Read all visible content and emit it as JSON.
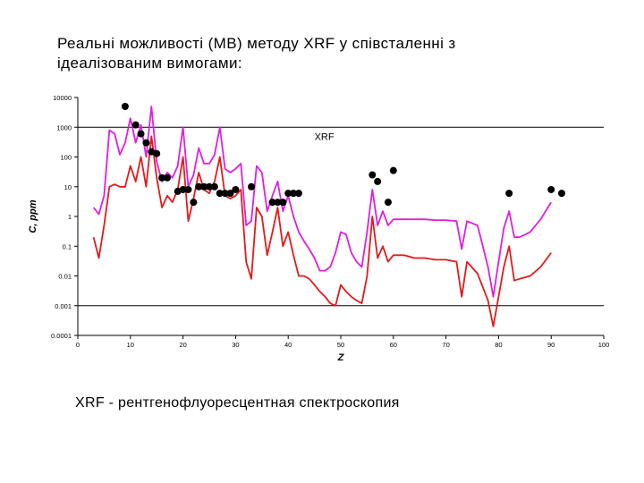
{
  "title_lines": [
    "Реальні можливості (МВ) методу XRF у співсталенні з",
    "ідеалізованим вимогами:"
  ],
  "footnote": "XRF - рентгенофлуоресцентная спектроскопия",
  "colors": {
    "magenta": "#e01ee0",
    "red": "#e31a1a",
    "markers": "#000000",
    "refLines": "#000000"
  },
  "chart_data": {
    "type": "line",
    "title": "",
    "xlabel": "Z",
    "ylabel": "C, ppm",
    "xlim": [
      0,
      100
    ],
    "ylim": [
      0.0001,
      10000
    ],
    "yscale": "log",
    "x_ticks": [
      0,
      10,
      20,
      30,
      40,
      50,
      60,
      70,
      80,
      90,
      100
    ],
    "x_tick_labels": [
      "0",
      "10",
      "20",
      "30",
      "40",
      "50",
      "60",
      "70",
      "80",
      "90",
      "100"
    ],
    "y_ticks": [
      0.0001,
      0.001,
      0.01,
      0.1,
      1,
      10,
      100,
      1000,
      10000
    ],
    "y_tick_labels": [
      "0.0001",
      "0.001",
      "0.01",
      "0.1",
      "1",
      "10",
      "100",
      "1000",
      "10000"
    ],
    "reference_lines": [
      1000,
      0.001
    ],
    "annotations": [
      {
        "text": "XRF",
        "x": 45,
        "y": 500
      }
    ],
    "series": [
      {
        "color": "#e01ee0",
        "x": [
          3,
          4,
          5,
          6,
          7,
          8,
          9,
          10,
          11,
          12,
          13,
          14,
          15,
          16,
          17,
          18,
          19,
          20,
          21,
          22,
          23,
          24,
          25,
          26,
          27,
          28,
          29,
          30,
          31,
          32,
          33,
          34,
          35,
          36,
          37,
          38,
          39,
          40,
          41,
          42,
          43,
          44,
          45,
          46,
          47,
          48,
          49,
          50,
          51,
          52,
          53,
          54,
          55,
          56,
          57,
          58,
          59,
          60,
          62,
          64,
          66,
          68,
          70,
          72,
          73,
          74,
          76,
          78,
          79,
          80,
          81,
          82,
          83,
          84,
          86,
          88,
          90
        ],
        "y": [
          2,
          1.2,
          5,
          800,
          600,
          120,
          300,
          2000,
          300,
          1200,
          100,
          5000,
          70,
          15,
          30,
          20,
          50,
          1000,
          10,
          25,
          200,
          60,
          60,
          120,
          1000,
          40,
          30,
          40,
          60,
          0.5,
          0.7,
          50,
          30,
          1.5,
          5,
          15,
          1.5,
          5,
          1,
          0.3,
          0.15,
          0.08,
          0.04,
          0.015,
          0.015,
          0.02,
          0.06,
          0.3,
          0.25,
          0.06,
          0.03,
          0.02,
          0.3,
          8,
          0.5,
          1.5,
          0.5,
          0.8,
          0.8,
          0.8,
          0.8,
          0.75,
          0.75,
          0.7,
          0.08,
          0.7,
          0.5,
          0.02,
          0.002,
          0.03,
          0.4,
          1.5,
          0.2,
          0.2,
          0.3,
          0.8,
          3
        ]
      },
      {
        "color": "#e31a1a",
        "x": [
          3,
          4,
          5,
          6,
          7,
          8,
          9,
          10,
          11,
          12,
          13,
          14,
          15,
          16,
          17,
          18,
          19,
          20,
          21,
          22,
          23,
          24,
          25,
          26,
          27,
          28,
          29,
          30,
          31,
          32,
          33,
          34,
          35,
          36,
          37,
          38,
          39,
          40,
          41,
          42,
          43,
          44,
          45,
          46,
          47,
          48,
          49,
          50,
          51,
          52,
          53,
          54,
          55,
          56,
          57,
          58,
          59,
          60,
          62,
          64,
          66,
          68,
          70,
          72,
          73,
          74,
          76,
          78,
          79,
          80,
          81,
          82,
          83,
          84,
          86,
          88,
          90
        ],
        "y": [
          0.2,
          0.04,
          0.5,
          10,
          12,
          10,
          10,
          50,
          15,
          100,
          10,
          500,
          20,
          2,
          5,
          3,
          8,
          100,
          0.7,
          4,
          30,
          8,
          6,
          15,
          100,
          5,
          4,
          5,
          8,
          0.03,
          0.008,
          2,
          1,
          0.05,
          0.3,
          2,
          0.1,
          0.3,
          0.05,
          0.01,
          0.01,
          0.008,
          0.005,
          0.003,
          0.002,
          0.0012,
          0.001,
          0.005,
          0.003,
          0.002,
          0.0015,
          0.0012,
          0.01,
          1,
          0.04,
          0.1,
          0.03,
          0.05,
          0.05,
          0.04,
          0.04,
          0.035,
          0.035,
          0.03,
          0.002,
          0.03,
          0.012,
          0.0015,
          0.0002,
          0.002,
          0.02,
          0.1,
          0.007,
          0.008,
          0.01,
          0.02,
          0.06
        ]
      },
      {
        "color": "#000000",
        "marker": "circle",
        "x": [
          9,
          11,
          12,
          13,
          14,
          15,
          16,
          17,
          19,
          20,
          21,
          22,
          23,
          24,
          25,
          26,
          27,
          28,
          29,
          30,
          33,
          37,
          38,
          39,
          40,
          41,
          42,
          56,
          57,
          59,
          60,
          82,
          90,
          92
        ],
        "y": [
          5000,
          1200,
          600,
          300,
          150,
          130,
          20,
          20,
          7,
          8,
          8,
          3,
          10,
          10,
          10,
          10,
          6,
          6,
          6,
          8,
          10,
          3,
          3,
          3,
          6,
          6,
          6,
          25,
          15,
          3,
          35,
          6,
          8,
          6
        ]
      }
    ]
  }
}
